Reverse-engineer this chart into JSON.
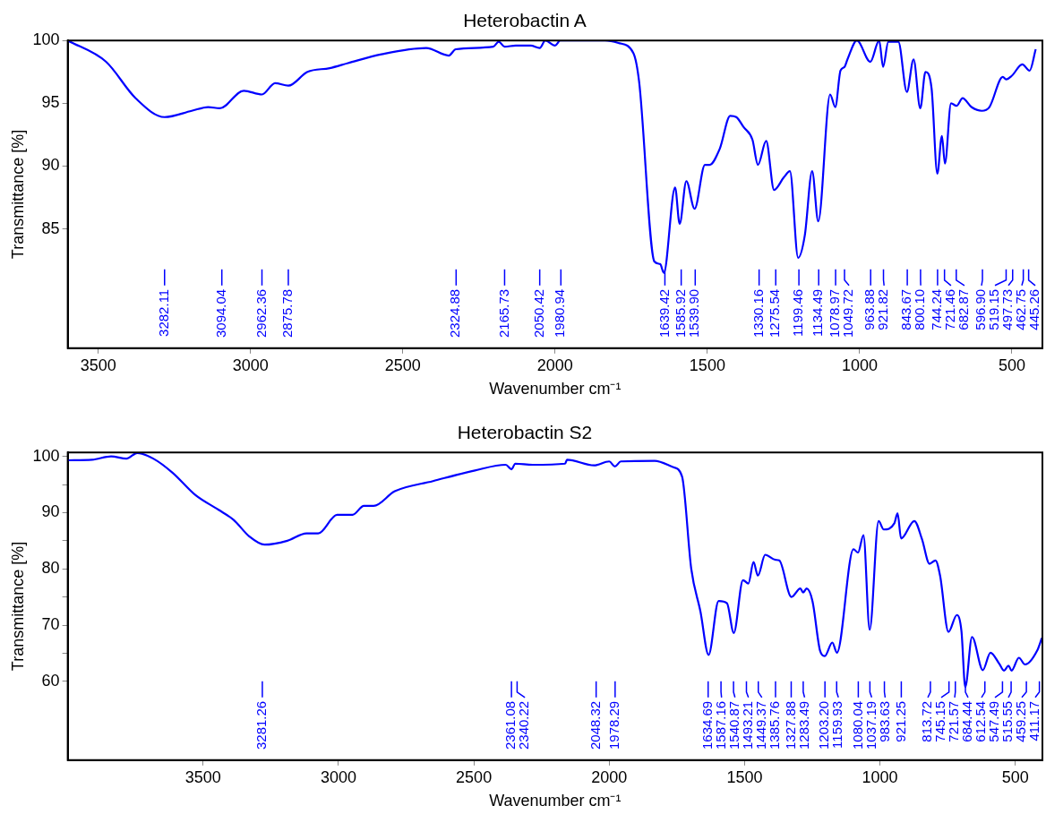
{
  "chart_data": [
    {
      "type": "line",
      "title": "Heterobactin A",
      "xlabel": "Wavenumber cm⁻¹",
      "ylabel": "Transmittance [%]",
      "xlim": [
        3600,
        400
      ],
      "ylim": [
        75.5,
        100
      ],
      "xticks": [
        3500,
        3000,
        2500,
        2000,
        1500,
        1000,
        500
      ],
      "yticks": [
        85,
        90,
        95,
        100
      ],
      "series": [
        {
          "color": "#0000ff",
          "x": [
            3600,
            3474,
            3377,
            3282.11,
            3193,
            3139,
            3101,
            3022,
            2962.36,
            2919,
            2875.78,
            2813,
            2740,
            2680,
            2570,
            2423,
            2349,
            2326,
            2203,
            2185,
            2165.73,
            2129,
            2080,
            2050.42,
            2032,
            2000,
            1983,
            1836,
            1792,
            1743,
            1724,
            1674,
            1655,
            1643,
            1606,
            1591,
            1569,
            1542,
            1508,
            1493,
            1459,
            1425,
            1405,
            1381,
            1352,
            1334,
            1307,
            1281,
            1249,
            1229,
            1202,
            1180,
            1156,
            1136,
            1097,
            1080,
            1063,
            1049.72,
            1040,
            1009,
            965,
            936,
            923,
            906,
            873,
            845,
            823,
            801,
            784,
            764,
            745,
            730,
            720,
            700,
            682,
            662,
            633,
            599,
            574,
            530,
            519.15,
            500,
            466,
            442,
            422
          ],
          "values": [
            100,
            98.3,
            95.4,
            93.9,
            94.4,
            94.7,
            94.6,
            96.0,
            95.7,
            96.6,
            96.4,
            97.5,
            97.8,
            98.2,
            98.9,
            99.4,
            98.8,
            99.3,
            99.5,
            99.9,
            99.5,
            99.6,
            99.6,
            99.4,
            100,
            99.6,
            100,
            100,
            99.8,
            99.0,
            96.7,
            82.4,
            82.2,
            81.5,
            88.3,
            85.4,
            88.8,
            86.6,
            90.1,
            90.1,
            91.4,
            94.0,
            93.9,
            93.1,
            92.1,
            90.1,
            92.0,
            88.1,
            89.1,
            89.6,
            82.7,
            84.5,
            89.6,
            85.6,
            95.7,
            94.7,
            97.6,
            97.9,
            98.5,
            100,
            98.3,
            100,
            97.9,
            99.9,
            99.9,
            95.9,
            98.5,
            94.6,
            97.5,
            96.2,
            89.4,
            92.4,
            90.2,
            95.0,
            94.8,
            95.4,
            94.7,
            94.4,
            94.7,
            97.1,
            96.9,
            97.2,
            98.1,
            97.6,
            99.3
          ]
        }
      ],
      "annotations": [
        {
          "text": "3282.11",
          "x": 3282.11
        },
        {
          "text": "3094.04",
          "x": 3094.04
        },
        {
          "text": "2962.36",
          "x": 2962.36
        },
        {
          "text": "2875.78",
          "x": 2875.78
        },
        {
          "text": "2324.88",
          "x": 2324.88
        },
        {
          "text": "2165.73",
          "x": 2165.73
        },
        {
          "text": "2050.42",
          "x": 2050.42
        },
        {
          "text": "1980.94",
          "x": 1980.94
        },
        {
          "text": "1639.42",
          "x": 1639.42
        },
        {
          "text": "1585.92",
          "x": 1585.92
        },
        {
          "text": "1539.90",
          "x": 1539.9
        },
        {
          "text": "1330.16",
          "x": 1330.16
        },
        {
          "text": "1275.54",
          "x": 1275.54
        },
        {
          "text": "1199.46",
          "x": 1199.46
        },
        {
          "text": "1134.49",
          "x": 1134.49
        },
        {
          "text": "1078.97",
          "x": 1078.97
        },
        {
          "text": "1049.72",
          "x": 1049.72
        },
        {
          "text": "963.88",
          "x": 963.88
        },
        {
          "text": "921.82",
          "x": 921.82
        },
        {
          "text": "843.67",
          "x": 843.67
        },
        {
          "text": "800.10",
          "x": 800.1
        },
        {
          "text": "744.24",
          "x": 744.24
        },
        {
          "text": "721.46",
          "x": 721.46
        },
        {
          "text": "682.87",
          "x": 682.87
        },
        {
          "text": "596.90",
          "x": 596.9
        },
        {
          "text": "519.15",
          "x": 519.15
        },
        {
          "text": "497.73",
          "x": 497.73
        },
        {
          "text": "462.75",
          "x": 462.75
        },
        {
          "text": "445.26",
          "x": 445.26
        }
      ]
    },
    {
      "type": "line",
      "title": "Heterobactin S2",
      "xlabel": "Wavenumber cm⁻¹",
      "ylabel": "Transmittance [%]",
      "xlim": [
        4000,
        400
      ],
      "ylim": [
        46,
        100.7
      ],
      "xticks": [
        3500,
        3000,
        2500,
        2000,
        1500,
        1000,
        500
      ],
      "yticks": [
        60,
        {
          "value": 65,
          "label": null
        },
        70,
        {
          "value": 75,
          "label": null
        },
        80,
        {
          "value": 85,
          "label": null
        },
        90,
        {
          "value": 95,
          "label": null
        },
        100
      ],
      "series": [
        {
          "color": "#0000ff",
          "x": [
            4000,
            3910,
            3840,
            3783,
            3743,
            3684,
            3613,
            3528,
            3443,
            3387,
            3330,
            3273,
            3189,
            3118,
            3075,
            3005,
            2948,
            2906,
            2870,
            2792,
            2651,
            2496,
            2382,
            2361,
            2347,
            2283,
            2163,
            2156,
            2056,
            2000,
            1979,
            1957,
            1832,
            1765,
            1731,
            1697,
            1663,
            1633,
            1596,
            1565,
            1540,
            1506,
            1486,
            1467,
            1451,
            1424,
            1385.76,
            1372,
            1327,
            1294,
            1283.49,
            1271,
            1249,
            1221,
            1204,
            1176,
            1159,
            1098,
            1081,
            1061,
            1038,
            1005,
            986,
            947,
            935,
            922,
            873,
            845,
            817,
            795,
            778,
            747,
            716,
            699,
            685,
            660,
            620,
            592,
            559,
            542,
            525,
            514,
            487,
            464,
            419,
            402
          ],
          "values": [
            99.3,
            99.4,
            100,
            99.6,
            100.6,
            99.6,
            97.1,
            93.1,
            90.5,
            88.7,
            85.8,
            84.3,
            85.0,
            86.3,
            86.3,
            89.6,
            89.6,
            91.2,
            91.2,
            93.8,
            95.6,
            97.5,
            98.5,
            97.7,
            98.7,
            98.5,
            98.7,
            99.4,
            98.4,
            99.1,
            98.2,
            99.1,
            99.2,
            98.1,
            96.4,
            80.0,
            72.4,
            64.7,
            74.3,
            73.9,
            68.6,
            78.0,
            77.4,
            81.2,
            78.8,
            82.5,
            81.6,
            81.5,
            75.0,
            76.5,
            75.8,
            76.5,
            74.2,
            65.4,
            64.5,
            66.9,
            65.1,
            83.5,
            82.9,
            86.0,
            69.2,
            88.5,
            87.0,
            88.1,
            89.9,
            85.4,
            88.5,
            85.3,
            80.9,
            81.5,
            78.8,
            68.8,
            71.8,
            68.9,
            59.0,
            67.9,
            62.0,
            65.1,
            63.1,
            61.9,
            62.8,
            61.9,
            64.2,
            63.0,
            65.5,
            67.7
          ]
        }
      ],
      "annotations": [
        {
          "text": "3281.26",
          "x": 3281.26
        },
        {
          "text": "2361.08",
          "x": 2361.08
        },
        {
          "text": "2340.22",
          "x": 2340.22
        },
        {
          "text": "2048.32",
          "x": 2048.32
        },
        {
          "text": "1978.29",
          "x": 1978.29
        },
        {
          "text": "1634.69",
          "x": 1634.69
        },
        {
          "text": "1587.16",
          "x": 1587.16
        },
        {
          "text": "1540.87",
          "x": 1540.87
        },
        {
          "text": "1493.21",
          "x": 1493.21
        },
        {
          "text": "1449.37",
          "x": 1449.37
        },
        {
          "text": "1385.76",
          "x": 1385.76
        },
        {
          "text": "1327.88",
          "x": 1327.88
        },
        {
          "text": "1283.49",
          "x": 1283.49
        },
        {
          "text": "1203.20",
          "x": 1203.2
        },
        {
          "text": "1159.93",
          "x": 1159.93
        },
        {
          "text": "1080.04",
          "x": 1080.04
        },
        {
          "text": "1037.19",
          "x": 1037.19
        },
        {
          "text": "983.63",
          "x": 983.63
        },
        {
          "text": "921.25",
          "x": 921.25
        },
        {
          "text": "813.72",
          "x": 813.72
        },
        {
          "text": "745.15",
          "x": 745.15
        },
        {
          "text": "721.57",
          "x": 721.57
        },
        {
          "text": "684.44",
          "x": 684.44
        },
        {
          "text": "612.54",
          "x": 612.54
        },
        {
          "text": "547.49",
          "x": 547.49
        },
        {
          "text": "515.55",
          "x": 515.55
        },
        {
          "text": "459.25",
          "x": 459.25
        },
        {
          "text": "411.17",
          "x": 411.17
        }
      ]
    }
  ]
}
